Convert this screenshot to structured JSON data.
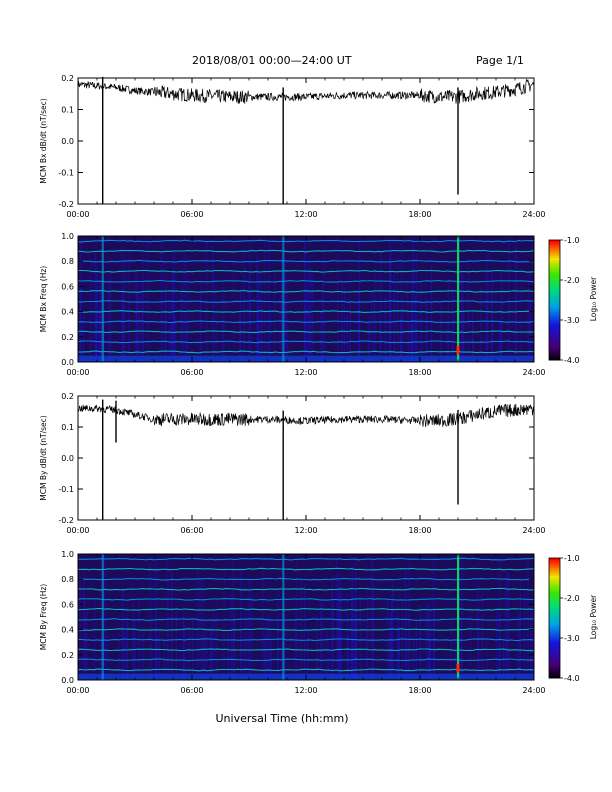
{
  "header": {
    "date_range": "2018/08/01   00:00—24:00 UT",
    "page": "Page 1/1"
  },
  "xlabel": "Universal Time (hh:mm)",
  "colors": {
    "trace": "#000000",
    "spectrogram_background": "#1e0a5a"
  },
  "chart_data": [
    {
      "type": "line",
      "ylabel": "MCM Bx dB/dt (nT/sec)",
      "xlim": [
        0,
        24
      ],
      "ylim": [
        -0.2,
        0.2
      ],
      "xticks": [
        "00:00",
        "06:00",
        "12:00",
        "18:00",
        "24:00"
      ],
      "yticks": [
        "0.2",
        "0.1",
        "0.0",
        "-0.1",
        "-0.2"
      ],
      "x": [
        0,
        1,
        2,
        3,
        4,
        5,
        6,
        8,
        10,
        12,
        14,
        16,
        18,
        19,
        20,
        21,
        22,
        23,
        24
      ],
      "y": [
        0.18,
        0.175,
        0.17,
        0.16,
        0.155,
        0.15,
        0.145,
        0.14,
        0.14,
        0.14,
        0.145,
        0.145,
        0.145,
        0.14,
        0.14,
        0.15,
        0.155,
        0.165,
        0.18
      ],
      "spikes": [
        {
          "x": 1.3,
          "y": -0.2
        },
        {
          "x": 10.8,
          "y": -0.2
        },
        {
          "x": 20.0,
          "y": -0.17
        }
      ]
    },
    {
      "type": "heatmap",
      "ylabel": "MCM Bx Freq (Hz)",
      "xlim": [
        0,
        24
      ],
      "ylim": [
        0,
        1.0
      ],
      "xticks": [
        "00:00",
        "06:00",
        "12:00",
        "18:00",
        "24:00"
      ],
      "yticks": [
        "1.0",
        "0.8",
        "0.6",
        "0.4",
        "0.2",
        "0.0"
      ],
      "colorbar": {
        "label": "Log₁₀ Power",
        "range": [
          -4.0,
          -1.0
        ],
        "ticks": [
          "-1.0",
          "-2.0",
          "-3.0",
          "-4.0"
        ]
      },
      "harmonic_lines_hz": [
        0.08,
        0.16,
        0.24,
        0.32,
        0.4,
        0.48,
        0.56,
        0.64,
        0.72,
        0.8,
        0.88,
        0.96
      ],
      "bright_columns_x": [
        1.3,
        10.8,
        20.0
      ]
    },
    {
      "type": "line",
      "ylabel": "MCM By dB/dt (nT/sec)",
      "xlim": [
        0,
        24
      ],
      "ylim": [
        -0.2,
        0.2
      ],
      "xticks": [
        "00:00",
        "06:00",
        "12:00",
        "18:00",
        "24:00"
      ],
      "yticks": [
        "0.2",
        "0.1",
        "0.0",
        "-0.1",
        "-0.2"
      ],
      "x": [
        0,
        1,
        2,
        3,
        4,
        5,
        6,
        8,
        10,
        12,
        14,
        16,
        18,
        19,
        20,
        21,
        22,
        23,
        24
      ],
      "y": [
        0.16,
        0.16,
        0.155,
        0.14,
        0.125,
        0.125,
        0.125,
        0.125,
        0.125,
        0.12,
        0.125,
        0.125,
        0.12,
        0.12,
        0.125,
        0.14,
        0.15,
        0.155,
        0.16
      ],
      "spikes": [
        {
          "x": 1.3,
          "y": -0.2
        },
        {
          "x": 10.8,
          "y": -0.2
        },
        {
          "x": 20.0,
          "y": -0.15
        },
        {
          "x": 2.0,
          "y": 0.05
        }
      ]
    },
    {
      "type": "heatmap",
      "ylabel": "MCM By Freq (Hz)",
      "xlim": [
        0,
        24
      ],
      "ylim": [
        0,
        1.0
      ],
      "xticks": [
        "00:00",
        "06:00",
        "12:00",
        "18:00",
        "24:00"
      ],
      "yticks": [
        "1.0",
        "0.8",
        "0.6",
        "0.4",
        "0.2",
        "0.0"
      ],
      "colorbar": {
        "label": "Log₁₀ Power",
        "range": [
          -4.0,
          -1.0
        ],
        "ticks": [
          "-1.0",
          "-2.0",
          "-3.0",
          "-4.0"
        ]
      },
      "harmonic_lines_hz": [
        0.08,
        0.16,
        0.24,
        0.32,
        0.4,
        0.48,
        0.56,
        0.64,
        0.72,
        0.8,
        0.88,
        0.96
      ],
      "bright_columns_x": [
        1.3,
        10.8,
        20.0
      ]
    }
  ]
}
